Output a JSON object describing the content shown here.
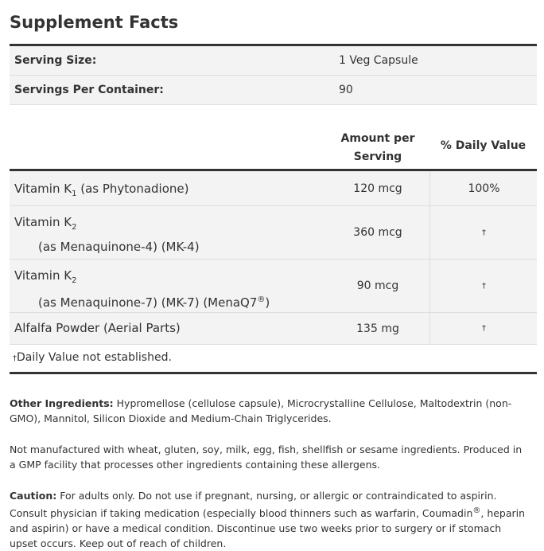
{
  "title": "Supplement Facts",
  "serving": [
    {
      "label": "Serving Size:",
      "value": "1 Veg Capsule"
    },
    {
      "label": "Servings Per Container:",
      "value": "90"
    }
  ],
  "header": {
    "amount": "Amount per Serving",
    "dv": "% Daily Value"
  },
  "nutrients": [
    {
      "name": "Vitamin K",
      "sub": "1",
      "rest": " (as Phytonadione)",
      "detail": "",
      "sup": "",
      "detail_end": "",
      "amount": "120 mcg",
      "dv": "100%"
    },
    {
      "name": "Vitamin K",
      "sub": "2",
      "rest": "",
      "detail": "(as Menaquinone-4) (MK-4)",
      "sup": "",
      "detail_end": "",
      "amount": "360 mcg",
      "dv": "†"
    },
    {
      "name": "Vitamin K",
      "sub": "2",
      "rest": "",
      "detail": "(as Menaquinone-7) (MK-7) (MenaQ7",
      "sup": "®",
      "detail_end": ")",
      "amount": "90 mcg",
      "dv": "†"
    },
    {
      "name": "Alfalfa Powder (Aerial Parts)",
      "sub": "",
      "rest": "",
      "detail": "",
      "sup": "",
      "detail_end": "",
      "amount": "135 mg",
      "dv": "†"
    }
  ],
  "footnote": {
    "dagger": "†",
    "text": "Daily Value not established."
  },
  "other": {
    "label": "Other Ingredients:",
    "text": " Hypromellose (cellulose capsule), Microcrystalline Cellulose, Maltodextrin (non-GMO), Mannitol, Silicon Dioxide and Medium-Chain Triglycerides."
  },
  "allergen": "Not manufactured with wheat, gluten, soy, milk, egg, fish, shellfish or sesame ingredients. Produced in a GMP facility that processes other ingredients containing these allergens.",
  "caution": {
    "label": "Caution:",
    "text1": " For adults only. Do not use if pregnant, nursing, or allergic or contraindicated to aspirin. Consult physician if taking medication (especially blood thinners such as warfarin, Coumadin",
    "sup": "®",
    "text2": ", heparin and aspirin) or have a medical condition. Discontinue use two weeks prior to surgery or if stomach upset occurs. Keep out of reach of children."
  }
}
